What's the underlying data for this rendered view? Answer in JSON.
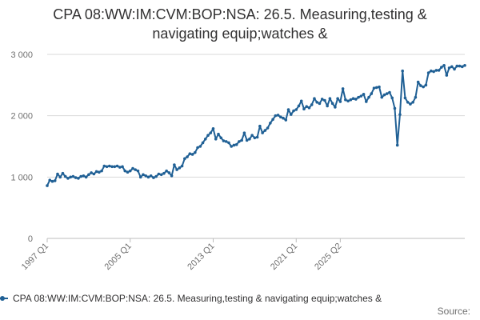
{
  "chart_data": {
    "type": "line",
    "title_lines": [
      "CPA 08:WW:IM:CVM:BOP:NSA: 26.5. Measuring,testing &",
      "navigating equip;watches &"
    ],
    "xlabel": "",
    "ylabel": "",
    "x_tick_labels": [
      "1997 Q1",
      "2005 Q1",
      "2013 Q1",
      "2021 Q1",
      "2025 Q2"
    ],
    "y_tick_labels": [
      "0",
      "1 000",
      "2 000",
      "3 000"
    ],
    "ylim": [
      0,
      3000
    ],
    "x_start_year": 1997,
    "grid": true,
    "legend_position": "bottom",
    "color": "#206095",
    "series": [
      {
        "name": "CPA 08:WW:IM:CVM:BOP:NSA: 26.5. Measuring,testing & navigating equip;watches &",
        "values": [
          860,
          950,
          930,
          940,
          1050,
          1000,
          1060,
          1010,
          980,
          1000,
          1010,
          990,
          980,
          1010,
          1020,
          1000,
          1040,
          1070,
          1050,
          1090,
          1080,
          1100,
          1180,
          1170,
          1180,
          1170,
          1170,
          1180,
          1160,
          1170,
          1100,
          1080,
          1100,
          1140,
          1120,
          1100,
          1000,
          1040,
          1020,
          1000,
          1020,
          990,
          1010,
          1050,
          1040,
          1060,
          1100,
          1070,
          1020,
          1200,
          1120,
          1150,
          1180,
          1300,
          1330,
          1380,
          1370,
          1400,
          1480,
          1500,
          1560,
          1620,
          1680,
          1720,
          1790,
          1620,
          1700,
          1640,
          1590,
          1580,
          1560,
          1500,
          1520,
          1530,
          1580,
          1600,
          1720,
          1600,
          1620,
          1680,
          1640,
          1650,
          1830,
          1720,
          1760,
          1800,
          1880,
          1940,
          2000,
          2010,
          1980,
          1960,
          1930,
          2100,
          2020,
          2080,
          2100,
          2160,
          2240,
          2110,
          2150,
          2130,
          2180,
          2280,
          2220,
          2200,
          2270,
          2250,
          2160,
          2280,
          2200,
          2140,
          2280,
          2230,
          2440,
          2260,
          2240,
          2260,
          2280,
          2270,
          2300,
          2320,
          2350,
          2230,
          2300,
          2360,
          2450,
          2460,
          2470,
          2300,
          2340,
          2360,
          2380,
          2290,
          2120,
          1520,
          2020,
          2730,
          2290,
          2220,
          2190,
          2220,
          2300,
          2550,
          2490,
          2470,
          2500,
          2700,
          2730,
          2720,
          2740,
          2740,
          2790,
          2820,
          2660,
          2780,
          2800,
          2760,
          2810,
          2810,
          2800,
          2820
        ]
      }
    ]
  },
  "legend": {
    "label": "CPA 08:WW:IM:CVM:BOP:NSA: 26.5. Measuring,testing & navigating equip;watches &"
  },
  "footer": {
    "source_label": "Source:"
  }
}
